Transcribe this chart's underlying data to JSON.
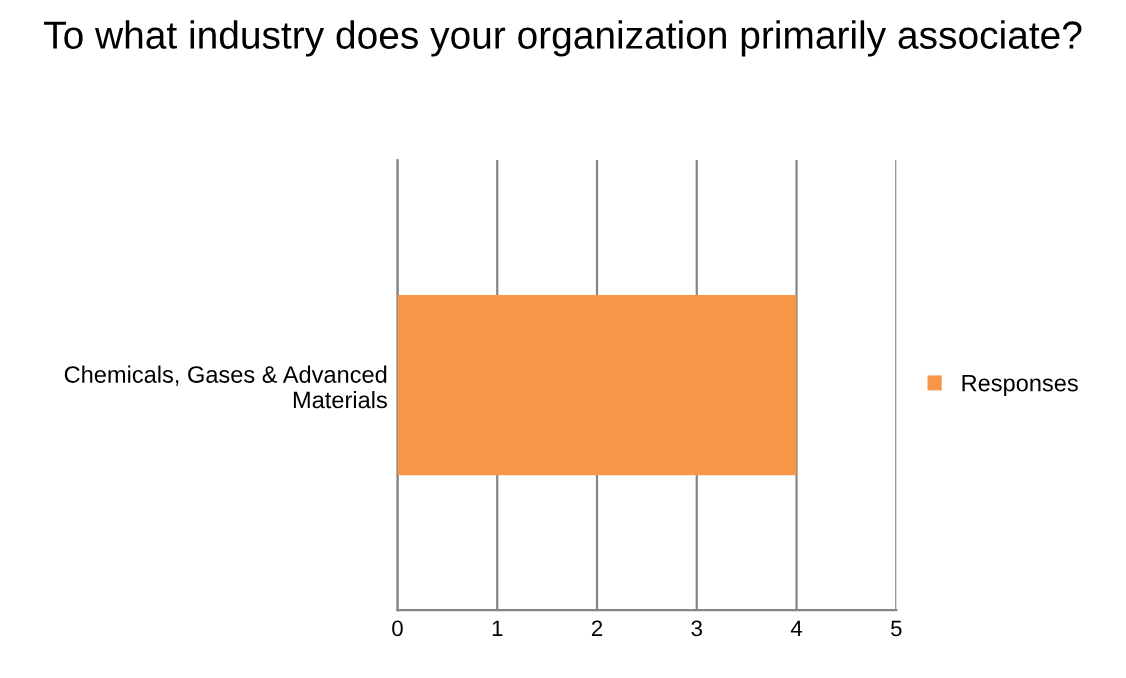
{
  "chart_data": {
    "type": "bar",
    "orientation": "horizontal",
    "title": "To what industry does your organization primarily associate?",
    "categories": [
      "Chemicals, Gases & Advanced\nMaterials"
    ],
    "series": [
      {
        "name": "Responses",
        "color": "#f79646",
        "values": [
          4
        ]
      }
    ],
    "xlim": [
      0,
      5
    ],
    "xticks": [
      0,
      1,
      2,
      3,
      4,
      5
    ],
    "grid": "x",
    "legend": "right"
  }
}
